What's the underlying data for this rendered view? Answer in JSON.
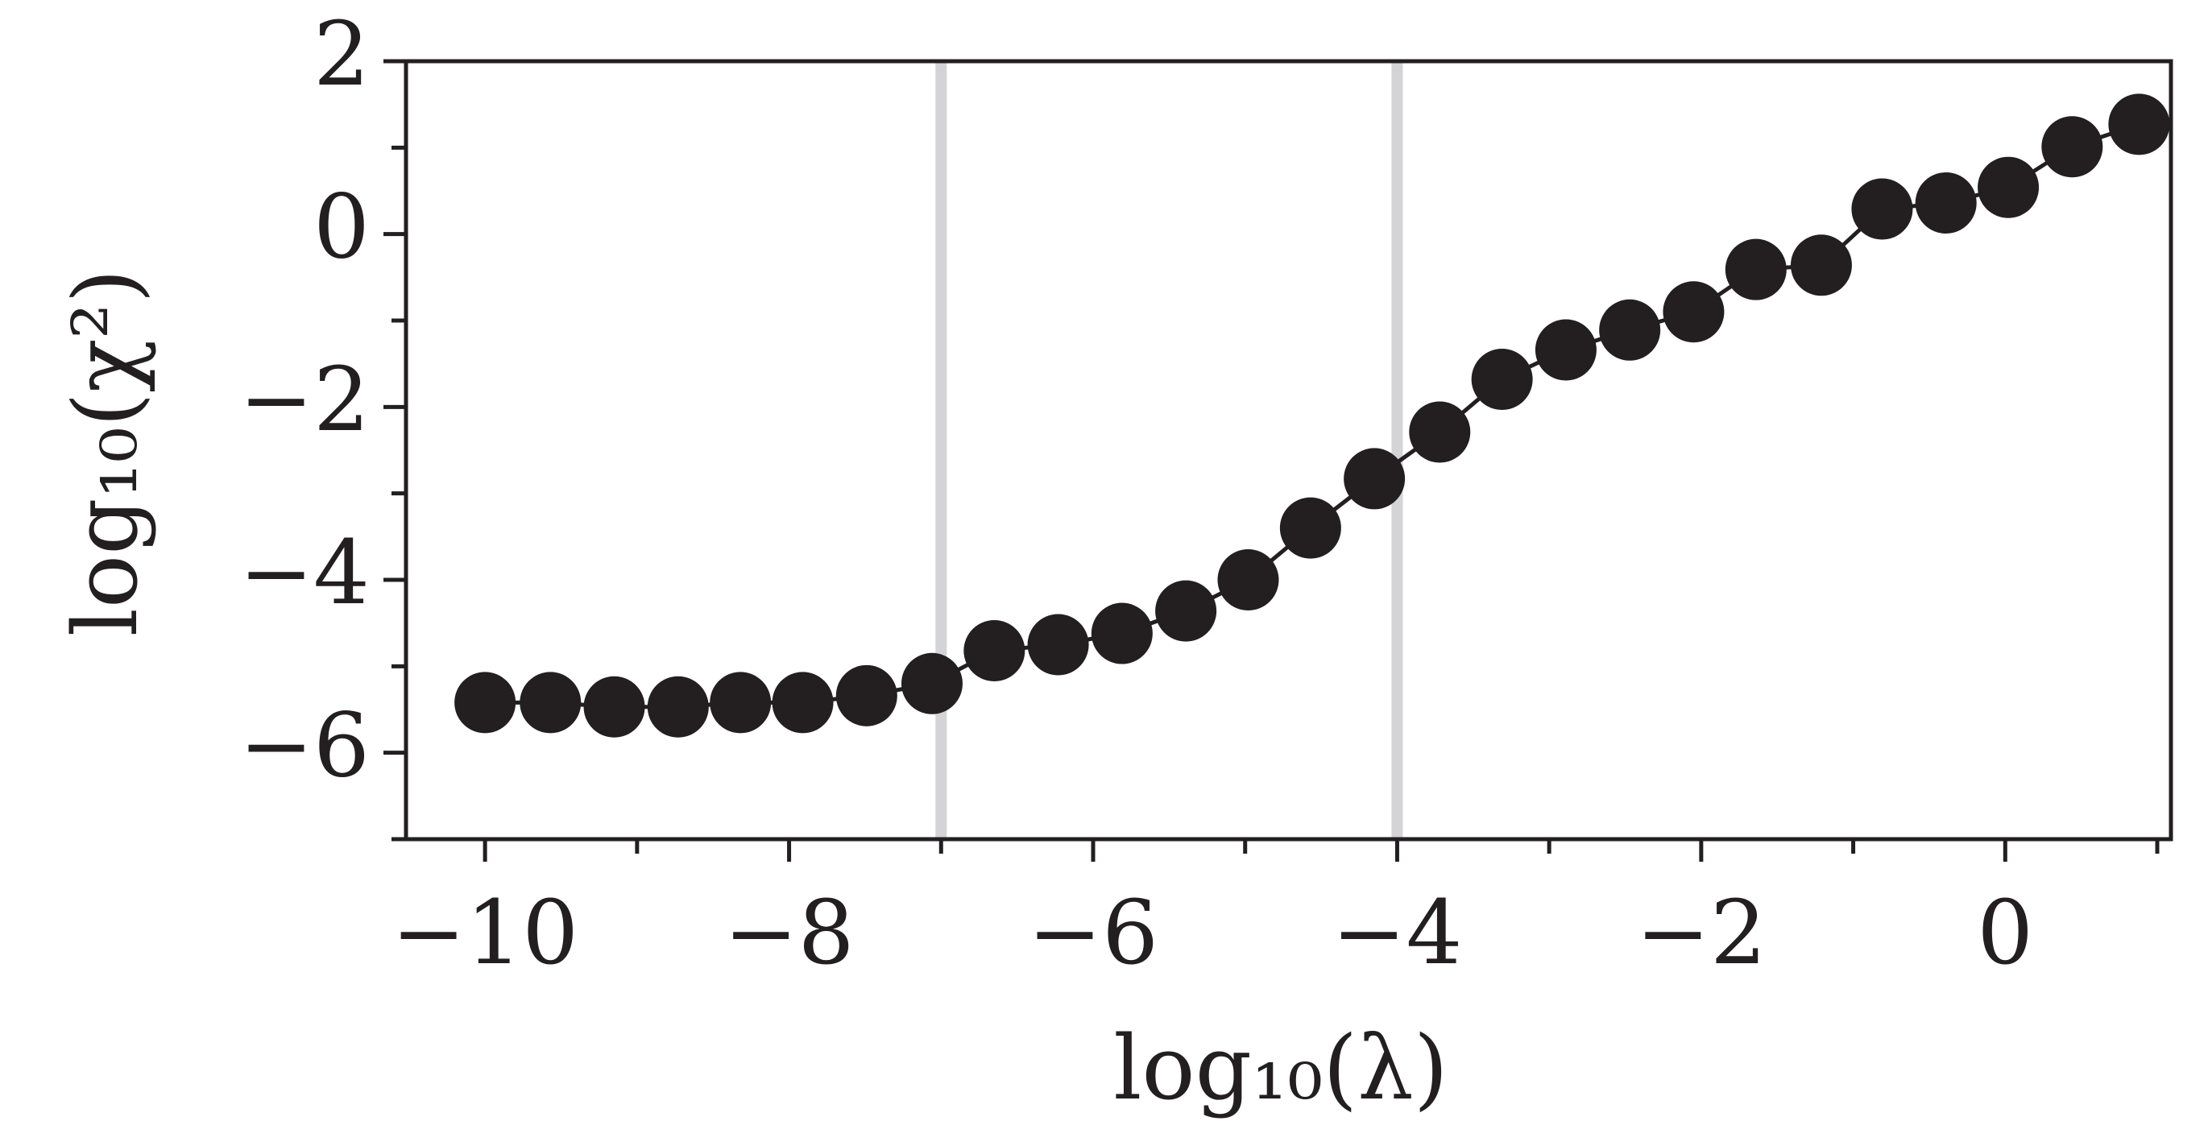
{
  "chart_data": {
    "type": "line",
    "xlabel": "log₁₀(λ)",
    "ylabel": "log₁₀(χ²)",
    "x": [
      -10,
      -9.57,
      -9.15,
      -8.73,
      -8.32,
      -7.91,
      -7.49,
      -7.06,
      -6.65,
      -6.23,
      -5.81,
      -5.39,
      -4.98,
      -4.57,
      -4.15,
      -3.72,
      -3.31,
      -2.89,
      -2.47,
      -2.05,
      -1.64,
      -1.21,
      -0.81,
      -0.39,
      0.02,
      0.44,
      0.88
    ],
    "values": [
      -5.42,
      -5.42,
      -5.47,
      -5.47,
      -5.42,
      -5.42,
      -5.34,
      -5.2,
      -4.82,
      -4.75,
      -4.62,
      -4.36,
      -4.0,
      -3.4,
      -2.83,
      -2.29,
      -1.68,
      -1.34,
      -1.11,
      -0.9,
      -0.41,
      -0.36,
      0.29,
      0.36,
      0.54,
      1.01,
      1.27
    ],
    "color": "#231f20",
    "markers": true,
    "xlim": [
      -10.52,
      1.09
    ],
    "ylim": [
      -7,
      2
    ],
    "xticks": [
      {
        "value": -10,
        "label": "−10"
      },
      {
        "value": -8,
        "label": "−8"
      },
      {
        "value": -6,
        "label": "−6"
      },
      {
        "value": -4,
        "label": "−4"
      },
      {
        "value": -2,
        "label": "−2"
      },
      0
    ],
    "yticks": [
      2,
      0,
      {
        "value": -2,
        "label": "−2"
      },
      {
        "value": -4,
        "label": "−4"
      },
      {
        "value": -6,
        "label": "−6"
      }
    ],
    "xminorticks": [
      -9,
      -7,
      -5,
      -3,
      -1,
      1
    ],
    "yminorticks": [
      1,
      -1,
      -3,
      -5,
      -7
    ],
    "vlines": [
      -7,
      -4
    ],
    "vline_color": "#d4d4d6",
    "grid": false
  }
}
